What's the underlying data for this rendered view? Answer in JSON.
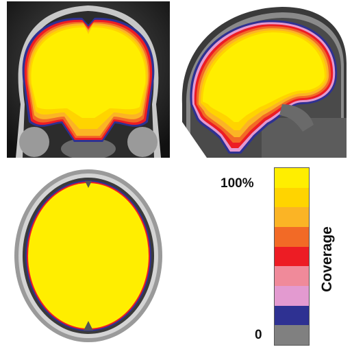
{
  "colorbar": {
    "title": "Coverage",
    "max_label": "100%",
    "min_label": "0",
    "colors": [
      "#ffee00",
      "#ffd400",
      "#fbb425",
      "#f26a26",
      "#ed1c24",
      "#f08a9a",
      "#e39ad0",
      "#2e3192",
      "#808080"
    ]
  },
  "views": [
    {
      "name": "coronal"
    },
    {
      "name": "sagittal"
    },
    {
      "name": "axial"
    }
  ]
}
